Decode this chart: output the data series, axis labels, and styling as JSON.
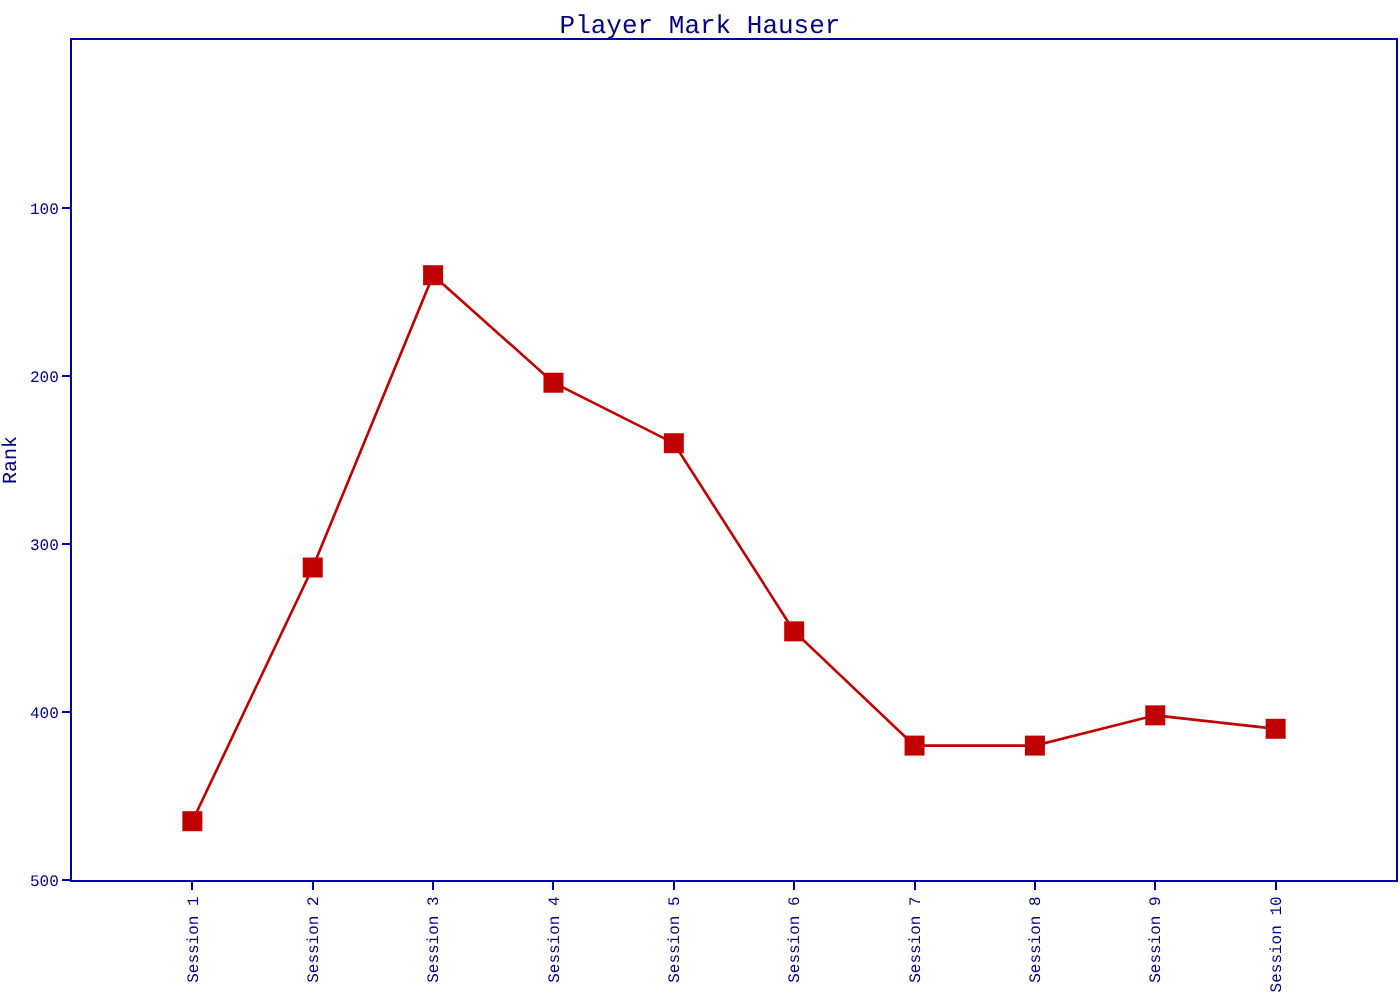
{
  "chart_data": {
    "type": "line",
    "title": "Player Mark Hauser",
    "ylabel": "Rank",
    "categories": [
      "Session 1",
      "Session 2",
      "Session 3",
      "Session 4",
      "Session 5",
      "Session 6",
      "Session 7",
      "Session 8",
      "Session 9",
      "Session 10"
    ],
    "series": [
      {
        "color": "#c00000",
        "values": [
          465,
          314,
          140,
          204,
          240,
          352,
          420,
          420,
          402,
          410
        ]
      }
    ],
    "ylim": [
      500,
      0
    ],
    "yticks": [
      100,
      200,
      300,
      400,
      500
    ],
    "marker": "square",
    "line_style": "solid"
  }
}
